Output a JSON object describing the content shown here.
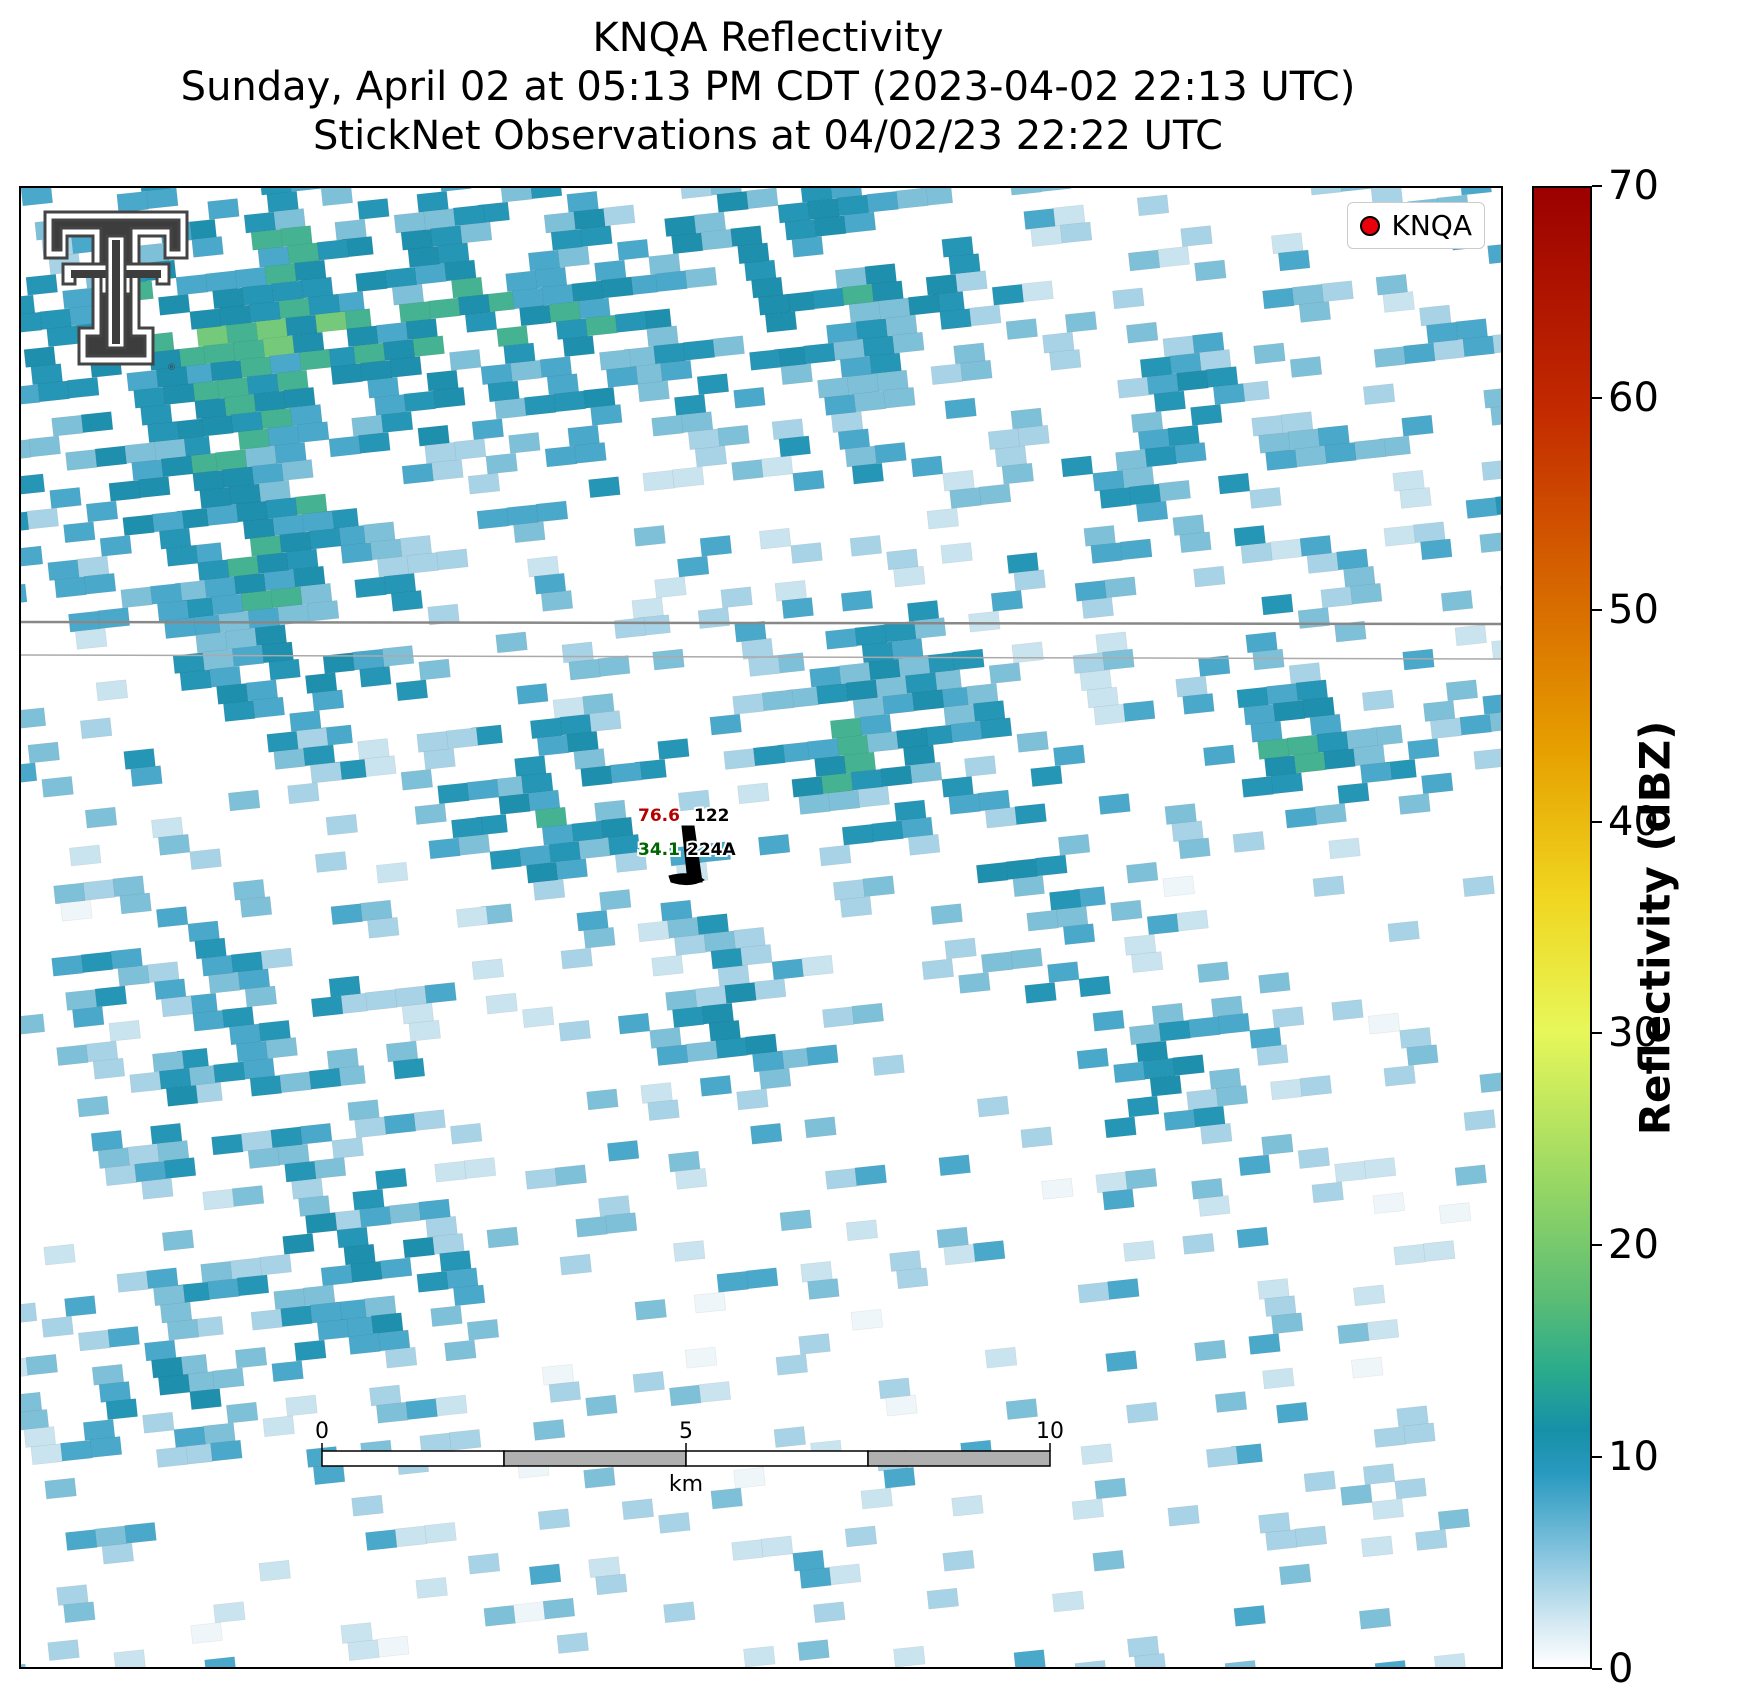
{
  "title": {
    "line1": "KNQA Reflectivity",
    "line2": "Sunday, April 02 at 05:13 PM CDT (2023-04-02 22:13 UTC)",
    "line3": "StickNet Observations at 04/02/23 22:22 UTC"
  },
  "legend": {
    "label": "KNQA",
    "marker_color": "#e8000b"
  },
  "colorbar": {
    "label": "Reflectivity (dBZ)",
    "ticks": [
      "0",
      "10",
      "20",
      "30",
      "40",
      "50",
      "60",
      "70"
    ],
    "range": [
      0,
      70
    ]
  },
  "station": {
    "temperature": "76.6",
    "temperature_color": "#b30000",
    "dewpoint": "34.1",
    "dewpoint_color": "#006400",
    "pressure": "122",
    "id": "224A"
  },
  "scalebar": {
    "ticks": [
      "0",
      "5",
      "10"
    ],
    "unit": "km"
  },
  "logo": {
    "name": "texas-tech-double-t-logo",
    "text": "®"
  },
  "colors": {
    "light_blue": "#c9e3ef",
    "mid_blue": "#7fc0d9",
    "teal": "#2596b6",
    "sea_green": "#45b292",
    "green": "#74c97a",
    "road": "#888888"
  }
}
